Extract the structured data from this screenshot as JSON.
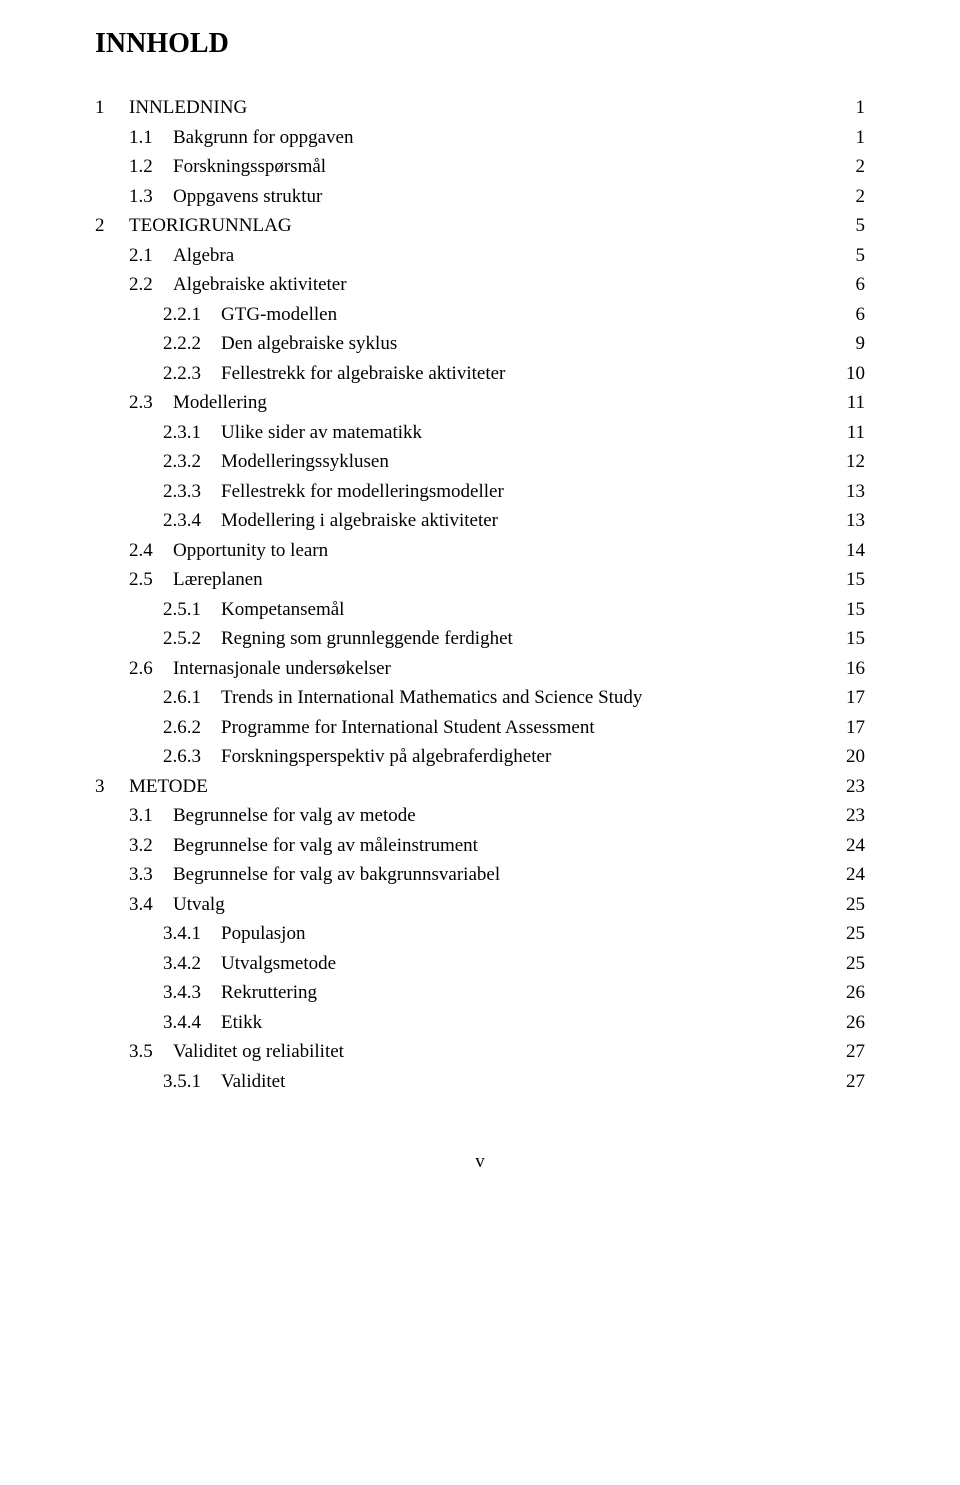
{
  "title": "INNHOLD",
  "footer": "v",
  "toc": [
    {
      "indent": 0,
      "num": "1",
      "label": "INNLEDNING",
      "page": "1"
    },
    {
      "indent": 1,
      "num": "1.1",
      "label": "Bakgrunn for oppgaven",
      "page": "1"
    },
    {
      "indent": 1,
      "num": "1.2",
      "label": "Forskningsspørsmål",
      "page": "2"
    },
    {
      "indent": 1,
      "num": "1.3",
      "label": "Oppgavens struktur",
      "page": "2"
    },
    {
      "indent": 0,
      "num": "2",
      "label": "TEORIGRUNNLAG",
      "page": "5"
    },
    {
      "indent": 1,
      "num": "2.1",
      "label": "Algebra",
      "page": "5"
    },
    {
      "indent": 1,
      "num": "2.2",
      "label": "Algebraiske aktiviteter",
      "page": "6"
    },
    {
      "indent": 2,
      "num": "2.2.1",
      "label": "GTG-modellen",
      "page": "6"
    },
    {
      "indent": 2,
      "num": "2.2.2",
      "label": "Den algebraiske syklus",
      "page": "9"
    },
    {
      "indent": 2,
      "num": "2.2.3",
      "label": "Fellestrekk for algebraiske aktiviteter",
      "page": "10"
    },
    {
      "indent": 1,
      "num": "2.3",
      "label": "Modellering",
      "page": "11"
    },
    {
      "indent": 2,
      "num": "2.3.1",
      "label": "Ulike sider av matematikk",
      "page": "11"
    },
    {
      "indent": 2,
      "num": "2.3.2",
      "label": "Modelleringssyklusen",
      "page": "12"
    },
    {
      "indent": 2,
      "num": "2.3.3",
      "label": "Fellestrekk for modelleringsmodeller",
      "page": "13"
    },
    {
      "indent": 2,
      "num": "2.3.4",
      "label": "Modellering i algebraiske aktiviteter",
      "page": "13"
    },
    {
      "indent": 1,
      "num": "2.4",
      "label": "Opportunity to learn",
      "page": "14"
    },
    {
      "indent": 1,
      "num": "2.5",
      "label": "Læreplanen",
      "page": "15"
    },
    {
      "indent": 2,
      "num": "2.5.1",
      "label": "Kompetansemål",
      "page": "15"
    },
    {
      "indent": 2,
      "num": "2.5.2",
      "label": "Regning som grunnleggende ferdighet",
      "page": "15"
    },
    {
      "indent": 1,
      "num": "2.6",
      "label": "Internasjonale undersøkelser",
      "page": "16"
    },
    {
      "indent": 2,
      "num": "2.6.1",
      "label": "Trends in International Mathematics and Science Study",
      "page": "17"
    },
    {
      "indent": 2,
      "num": "2.6.2",
      "label": "Programme for International Student Assessment",
      "page": "17"
    },
    {
      "indent": 2,
      "num": "2.6.3",
      "label": "Forskningsperspektiv på algebraferdigheter",
      "page": "20"
    },
    {
      "indent": 0,
      "num": "3",
      "label": "METODE",
      "page": "23"
    },
    {
      "indent": 1,
      "num": "3.1",
      "label": "Begrunnelse for valg av metode",
      "page": "23"
    },
    {
      "indent": 1,
      "num": "3.2",
      "label": "Begrunnelse for valg av måleinstrument",
      "page": "24"
    },
    {
      "indent": 1,
      "num": "3.3",
      "label": "Begrunnelse for valg av bakgrunnsvariabel",
      "page": "24"
    },
    {
      "indent": 1,
      "num": "3.4",
      "label": "Utvalg",
      "page": "25"
    },
    {
      "indent": 2,
      "num": "3.4.1",
      "label": "Populasjon",
      "page": "25"
    },
    {
      "indent": 2,
      "num": "3.4.2",
      "label": "Utvalgsmetode",
      "page": "25"
    },
    {
      "indent": 2,
      "num": "3.4.3",
      "label": "Rekruttering",
      "page": "26"
    },
    {
      "indent": 2,
      "num": "3.4.4",
      "label": "Etikk",
      "page": "26"
    },
    {
      "indent": 1,
      "num": "3.5",
      "label": "Validitet og reliabilitet",
      "page": "27"
    },
    {
      "indent": 2,
      "num": "3.5.1",
      "label": "Validitet",
      "page": "27"
    }
  ]
}
